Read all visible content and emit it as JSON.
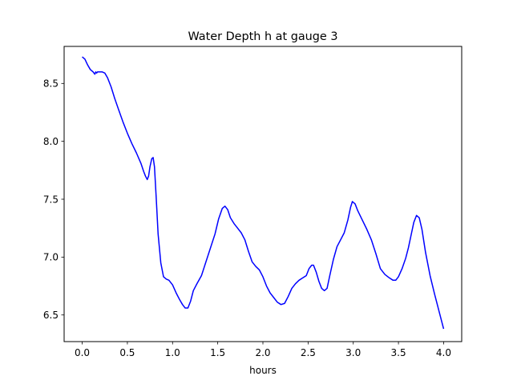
{
  "chart_data": {
    "type": "line",
    "title": "Water Depth h at gauge 3",
    "xlabel": "hours",
    "ylabel": "",
    "xlim": [
      -0.2,
      4.2
    ],
    "ylim": [
      6.27,
      8.82
    ],
    "xticks": [
      0.0,
      0.5,
      1.0,
      1.5,
      2.0,
      2.5,
      3.0,
      3.5,
      4.0
    ],
    "xtick_labels": [
      "0.0",
      "0.5",
      "1.0",
      "1.5",
      "2.0",
      "2.5",
      "3.0",
      "3.5",
      "4.0"
    ],
    "yticks": [
      6.5,
      7.0,
      7.5,
      8.0,
      8.5
    ],
    "ytick_labels": [
      "6.5",
      "7.0",
      "7.5",
      "8.0",
      "8.5"
    ],
    "grid": false,
    "series": [
      {
        "color": "#0000ff",
        "x": [
          0.0,
          0.03,
          0.06,
          0.09,
          0.12,
          0.14,
          0.15,
          0.16,
          0.17,
          0.19,
          0.22,
          0.25,
          0.28,
          0.32,
          0.36,
          0.4,
          0.45,
          0.5,
          0.55,
          0.6,
          0.65,
          0.68,
          0.7,
          0.72,
          0.735,
          0.75,
          0.77,
          0.785,
          0.8,
          0.82,
          0.84,
          0.87,
          0.9,
          0.93,
          0.96,
          1.0,
          1.04,
          1.08,
          1.11,
          1.14,
          1.17,
          1.2,
          1.23,
          1.27,
          1.32,
          1.37,
          1.42,
          1.47,
          1.51,
          1.55,
          1.58,
          1.61,
          1.64,
          1.68,
          1.72,
          1.76,
          1.8,
          1.84,
          1.88,
          1.92,
          1.96,
          2.0,
          2.04,
          2.08,
          2.12,
          2.16,
          2.2,
          2.24,
          2.28,
          2.32,
          2.36,
          2.4,
          2.44,
          2.48,
          2.51,
          2.54,
          2.56,
          2.59,
          2.62,
          2.65,
          2.68,
          2.71,
          2.74,
          2.78,
          2.82,
          2.86,
          2.9,
          2.94,
          2.97,
          2.99,
          3.02,
          3.05,
          3.1,
          3.15,
          3.2,
          3.25,
          3.3,
          3.35,
          3.4,
          3.44,
          3.47,
          3.5,
          3.54,
          3.58,
          3.61,
          3.64,
          3.67,
          3.7,
          3.73,
          3.76,
          3.8,
          3.85,
          3.9,
          3.95,
          4.0
        ],
        "y": [
          8.73,
          8.71,
          8.66,
          8.62,
          8.6,
          8.58,
          8.6,
          8.59,
          8.6,
          8.6,
          8.6,
          8.59,
          8.55,
          8.47,
          8.37,
          8.28,
          8.17,
          8.07,
          7.98,
          7.9,
          7.81,
          7.74,
          7.7,
          7.67,
          7.7,
          7.78,
          7.85,
          7.86,
          7.78,
          7.5,
          7.2,
          6.95,
          6.83,
          6.81,
          6.8,
          6.76,
          6.69,
          6.63,
          6.59,
          6.56,
          6.56,
          6.62,
          6.71,
          6.77,
          6.84,
          6.96,
          7.08,
          7.2,
          7.33,
          7.42,
          7.44,
          7.41,
          7.34,
          7.29,
          7.25,
          7.21,
          7.15,
          7.05,
          6.96,
          6.92,
          6.89,
          6.83,
          6.75,
          6.69,
          6.65,
          6.61,
          6.59,
          6.6,
          6.66,
          6.73,
          6.77,
          6.8,
          6.82,
          6.84,
          6.9,
          6.93,
          6.93,
          6.87,
          6.79,
          6.73,
          6.71,
          6.73,
          6.84,
          6.98,
          7.09,
          7.15,
          7.21,
          7.32,
          7.43,
          7.48,
          7.46,
          7.4,
          7.32,
          7.24,
          7.15,
          7.03,
          6.9,
          6.85,
          6.82,
          6.8,
          6.8,
          6.83,
          6.9,
          6.99,
          7.08,
          7.19,
          7.3,
          7.36,
          7.34,
          7.24,
          7.04,
          6.84,
          6.68,
          6.53,
          6.38
        ]
      }
    ]
  }
}
